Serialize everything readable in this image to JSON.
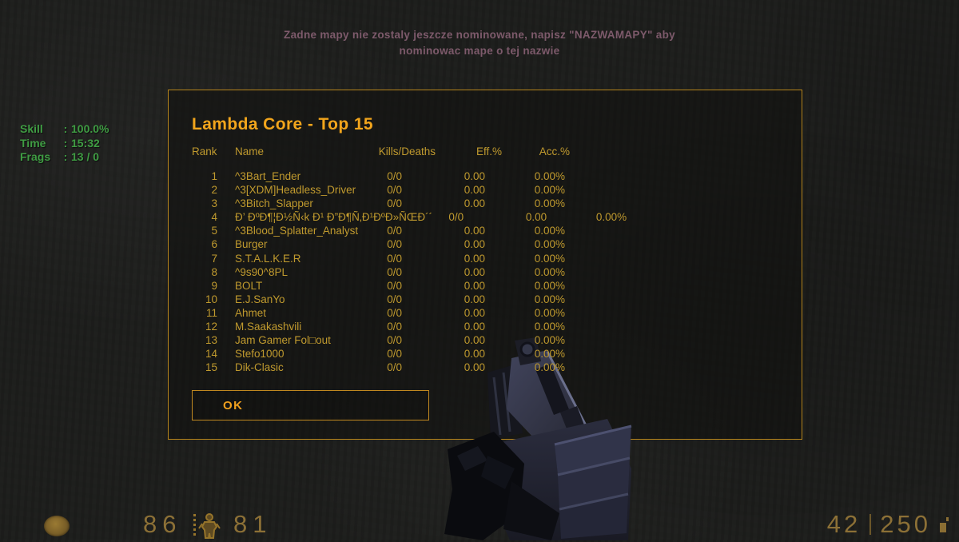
{
  "top_message": {
    "line1": "Zadne mapy nie zostaly jeszcze nominowane, napisz \"NAZWAMAPY\" aby",
    "line2": "nominowac mape o tej nazwie"
  },
  "hud_left": {
    "sep": ":",
    "rows": [
      {
        "label": "Skill",
        "value": "100.0%"
      },
      {
        "label": "Time",
        "value": "15:32"
      },
      {
        "label": "Frags",
        "value": "13 / 0"
      }
    ]
  },
  "scoreboard": {
    "title": "Lambda Core - Top 15",
    "columns": [
      "Rank",
      "Name",
      "Kills/Deaths",
      "Eff.%",
      "Acc.%"
    ],
    "rows": [
      {
        "rank": "1",
        "name": "^3Bart_Ender",
        "kd": "0/0",
        "eff": "0.00",
        "acc": "0.00%"
      },
      {
        "rank": "2",
        "name": "^3[XDM]Headless_Driver",
        "kd": "0/0",
        "eff": "0.00",
        "acc": "0.00%"
      },
      {
        "rank": "3",
        "name": "^3Bitch_Slapper",
        "kd": "0/0",
        "eff": "0.00",
        "acc": "0.00%"
      },
      {
        "rank": "4",
        "name": "Ð’ ÐºÐ¶¦Ð½Ñ‹k Ð¹  Ð”Ð¶Ñ‚Ð¹ÐºÐ»ÑŒÐ´´",
        "kd": "0/0",
        "eff": "0.00",
        "acc": "0.00%"
      },
      {
        "rank": "5",
        "name": "^3Blood_Splatter_Analyst",
        "kd": "0/0",
        "eff": "0.00",
        "acc": "0.00%"
      },
      {
        "rank": "6",
        "name": "Burger",
        "kd": "0/0",
        "eff": "0.00",
        "acc": "0.00%"
      },
      {
        "rank": "7",
        "name": "S.T.A.L.K.E.R",
        "kd": "0/0",
        "eff": "0.00",
        "acc": "0.00%"
      },
      {
        "rank": "8",
        "name": "^9s90^8PL",
        "kd": "0/0",
        "eff": "0.00",
        "acc": "0.00%"
      },
      {
        "rank": "9",
        "name": "BOLT",
        "kd": "0/0",
        "eff": "0.00",
        "acc": "0.00%"
      },
      {
        "rank": "10",
        "name": "E.J.SanYo",
        "kd": "0/0",
        "eff": "0.00",
        "acc": "0.00%"
      },
      {
        "rank": "11",
        "name": "Ahmet",
        "kd": "0/0",
        "eff": "0.00",
        "acc": "0.00%"
      },
      {
        "rank": "12",
        "name": "M.Saakashvili",
        "kd": "0/0",
        "eff": "0.00",
        "acc": "0.00%"
      },
      {
        "rank": "13",
        "name": "Jam Gamer Fol□out",
        "kd": "0/0",
        "eff": "0.00",
        "acc": "0.00%"
      },
      {
        "rank": "14",
        "name": "Stefo1000",
        "kd": "0/0",
        "eff": "0.00",
        "acc": "0.00%"
      },
      {
        "rank": "15",
        "name": "Dik-Clasic",
        "kd": "0/0",
        "eff": "0.00",
        "acc": "0.00%"
      }
    ],
    "ok_label": "OK"
  },
  "hud_bottom": {
    "health": "86",
    "armor": "81",
    "ammo_clip": "42",
    "ammo_reserve": "250"
  },
  "colors": {
    "title_orange": "#f2a51c",
    "table_gold": "#c09a2e",
    "panel_border": "#b5841c",
    "message_mauve": "#7d5a6b",
    "stats_green": "#3f9c43",
    "hud_amber": "#8c7036",
    "background": "#1d1e1c"
  }
}
